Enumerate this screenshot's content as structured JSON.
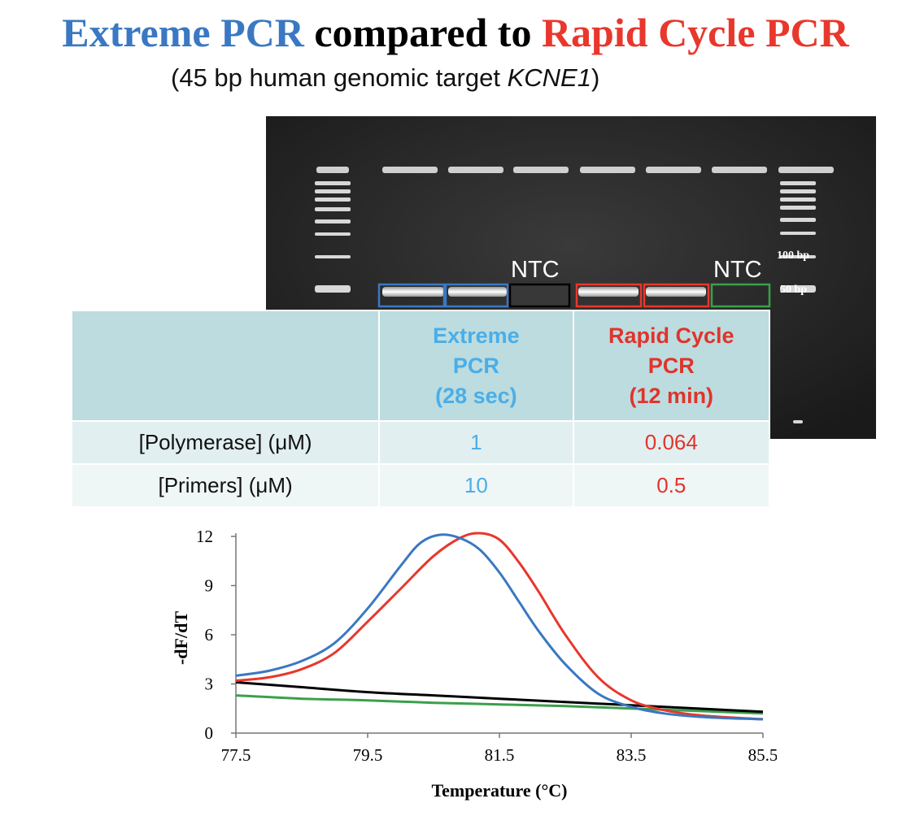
{
  "title": {
    "part1": "Extreme PCR",
    "part2": " compared to ",
    "part3": "Rapid Cycle PCR",
    "color_extreme": "#3a78c2",
    "color_rapid": "#e8372c"
  },
  "subtitle": {
    "prefix": "(45 bp human genomic target ",
    "gene": "KCNE1",
    "suffix": ")"
  },
  "gel": {
    "ntc_label_1": "NTC",
    "ntc_label_2": "NTC",
    "marker_100": "100 bp",
    "marker_50": "50 bp",
    "box_colors": [
      "#3a78c2",
      "#3a78c2",
      "#000000",
      "#e8372c",
      "#e8372c",
      "#3aa04a"
    ]
  },
  "table": {
    "header": {
      "extreme": [
        "Extreme",
        "PCR",
        "(28 sec)"
      ],
      "rapid": [
        "Rapid Cycle",
        "PCR",
        "(12 min)"
      ]
    },
    "rows": [
      {
        "param": "[Polymerase] (μM)",
        "extreme": "1",
        "rapid": "0.064"
      },
      {
        "param": "[Primers] (μM)",
        "extreme": "10",
        "rapid": "0.5"
      }
    ]
  },
  "chart_data": {
    "type": "line",
    "title": "",
    "xlabel": "Temperature (°C)",
    "ylabel": "-dF/dT",
    "xlim": [
      77.5,
      85.5
    ],
    "ylim": [
      0,
      12
    ],
    "xticks": [
      "77.5",
      "79.5",
      "81.5",
      "83.5",
      "85.5"
    ],
    "yticks": [
      "0",
      "3",
      "6",
      "9",
      "12"
    ],
    "series": [
      {
        "name": "Extreme PCR",
        "color": "#3a78c2",
        "x": [
          77.5,
          78.0,
          78.5,
          79.0,
          79.5,
          80.0,
          80.3,
          80.6,
          80.9,
          81.2,
          81.5,
          81.8,
          82.1,
          82.5,
          83.0,
          83.5,
          84.0,
          84.5,
          85.0,
          85.5
        ],
        "y": [
          3.5,
          3.8,
          4.4,
          5.5,
          7.6,
          10.2,
          11.6,
          12.1,
          11.9,
          11.2,
          9.8,
          8.0,
          6.2,
          4.2,
          2.4,
          1.6,
          1.2,
          1.0,
          0.9,
          0.85
        ]
      },
      {
        "name": "Rapid Cycle PCR",
        "color": "#e8372c",
        "x": [
          77.5,
          78.0,
          78.5,
          79.0,
          79.5,
          80.0,
          80.5,
          80.9,
          81.2,
          81.5,
          81.8,
          82.1,
          82.5,
          83.0,
          83.5,
          84.0,
          84.5,
          85.0,
          85.5
        ],
        "y": [
          3.2,
          3.4,
          3.9,
          4.9,
          6.8,
          8.8,
          10.8,
          11.9,
          12.2,
          11.8,
          10.4,
          8.6,
          6.0,
          3.4,
          2.0,
          1.4,
          1.1,
          0.95,
          0.85
        ]
      },
      {
        "name": "NTC (black)",
        "color": "#000000",
        "x": [
          77.5,
          78.5,
          79.5,
          80.5,
          81.5,
          82.5,
          83.5,
          84.5,
          85.5
        ],
        "y": [
          3.1,
          2.8,
          2.5,
          2.3,
          2.1,
          1.9,
          1.7,
          1.5,
          1.3
        ]
      },
      {
        "name": "NTC (green)",
        "color": "#3aa04a",
        "x": [
          77.5,
          78.5,
          79.5,
          80.5,
          81.5,
          82.5,
          83.5,
          84.5,
          85.5
        ],
        "y": [
          2.3,
          2.1,
          2.0,
          1.85,
          1.75,
          1.65,
          1.5,
          1.35,
          1.2
        ]
      }
    ]
  }
}
